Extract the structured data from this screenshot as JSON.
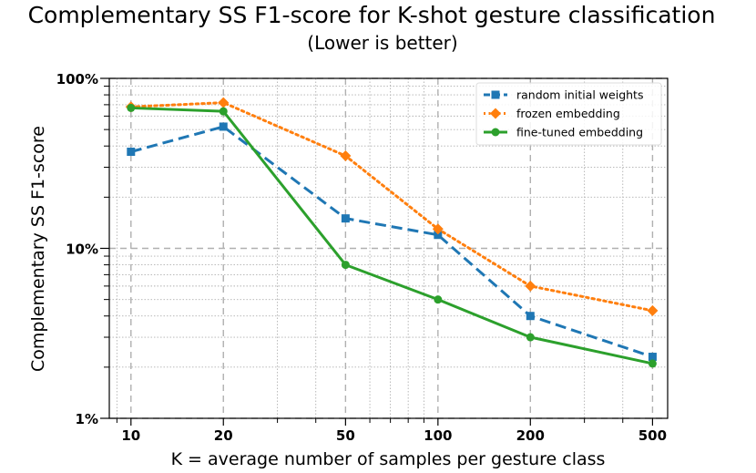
{
  "chart_data": {
    "type": "line",
    "title": "Complementary SS F1-score for K-shot gesture classification",
    "subtitle": "(Lower is better)",
    "xlabel": "K = average number of samples per gesture class",
    "ylabel": "Complementary SS F1-score",
    "xscale": "log",
    "yscale": "log",
    "x": [
      10,
      20,
      50,
      100,
      200,
      500
    ],
    "xtick_labels": [
      "10",
      "20",
      "50",
      "100",
      "200",
      "500"
    ],
    "yticks": [
      1,
      10,
      100
    ],
    "ytick_labels": [
      "1%",
      "10%",
      "100%"
    ],
    "xlim": [
      8.5,
      560
    ],
    "ylim": [
      1,
      100
    ],
    "grid": true,
    "legend_position": "top-right",
    "series": [
      {
        "name": "random initial weights",
        "color": "#1f77b4",
        "linestyle": "dashed",
        "marker": "square",
        "values": [
          37,
          52,
          15,
          12,
          4.0,
          2.3
        ]
      },
      {
        "name": "frozen embedding",
        "color": "#ff7f0e",
        "linestyle": "dotted",
        "marker": "diamond",
        "values": [
          68,
          72,
          35,
          13,
          6.0,
          4.3
        ]
      },
      {
        "name": "fine-tuned embedding",
        "color": "#2ca02c",
        "linestyle": "solid",
        "marker": "circle",
        "values": [
          67,
          64,
          8.0,
          5.0,
          3.0,
          2.1
        ]
      }
    ]
  }
}
